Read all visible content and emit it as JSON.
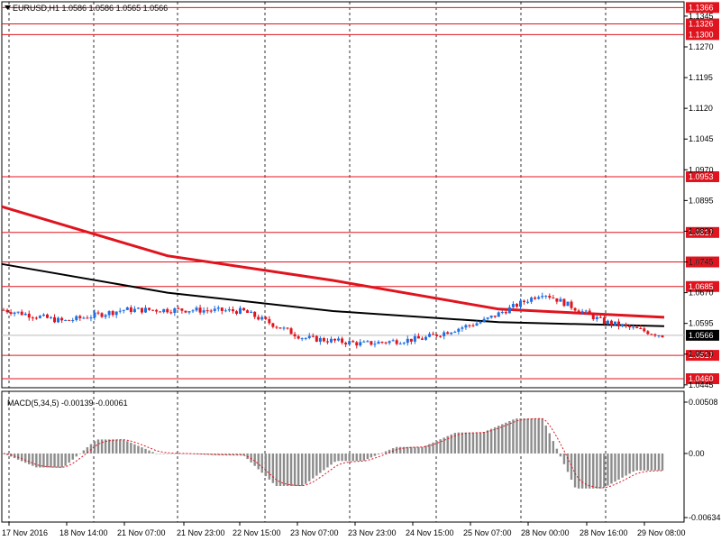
{
  "header": {
    "symbol_info": "EURUSD,H1  1.0586 1.0586 1.0565 1.0566",
    "macd_info": "MACD(5,34,5) -0.00139 -0.00061",
    "menu_icon": "triangle-down-icon"
  },
  "colors": {
    "bull": "#1e6fe0",
    "bear": "#e0141e",
    "hline": "#e0141e",
    "ma_slow": "#e0141e",
    "ma_fast": "#000000",
    "hist": "#8c8c8c",
    "signal": "#e0141e",
    "grid": "#000000"
  },
  "price_axis": {
    "ticks": [
      "1.1345",
      "1.1270",
      "1.1195",
      "1.1120",
      "1.1045",
      "1.0970",
      "1.0895",
      "1.0820",
      "1.0745",
      "1.0670",
      "1.0595",
      "1.0520",
      "1.0445"
    ],
    "current_price": "1.0566"
  },
  "levels": [
    "1.1366",
    "1.1326",
    "1.1300",
    "1.0953",
    "1.0817",
    "1.0745",
    "1.0685",
    "1.0517",
    "1.0460"
  ],
  "macd_axis": {
    "ticks": [
      "0.00508",
      "0.00",
      "-0.00634"
    ]
  },
  "time_axis": {
    "labels": [
      "17 Nov 2016",
      "18 Nov 14:00",
      "21 Nov 07:00",
      "21 Nov 23:00",
      "22 Nov 15:00",
      "23 Nov 07:00",
      "23 Nov 23:00",
      "24 Nov 15:00",
      "25 Nov 07:00",
      "28 Nov 00:00",
      "28 Nov 16:00",
      "29 Nov 08:00"
    ]
  },
  "chart_data": [
    {
      "type": "candlestick",
      "title": "EURUSD,H1",
      "ylim": [
        1.0445,
        1.1366
      ],
      "ohlc_last": {
        "open": 1.0586,
        "high": 1.0586,
        "low": 1.0565,
        "close": 1.0566
      },
      "key_points": [
        {
          "t": "17 Nov 2016",
          "price": 1.0628
        },
        {
          "t": "18 Nov 14:00",
          "price": 1.06
        },
        {
          "t": "21 Nov 07:00",
          "price": 1.0628
        },
        {
          "t": "21 Nov 23:00",
          "price": 1.0628
        },
        {
          "t": "22 Nov 15:00",
          "price": 1.0625
        },
        {
          "t": "23 Nov 07:00",
          "price": 1.056
        },
        {
          "t": "23 Nov 23:00",
          "price": 1.0545
        },
        {
          "t": "24 Nov 15:00",
          "price": 1.0558
        },
        {
          "t": "25 Nov 07:00",
          "price": 1.06
        },
        {
          "t": "28 Nov 00:00",
          "price": 1.067
        },
        {
          "t": "28 Nov 16:00",
          "price": 1.06
        },
        {
          "t": "29 Nov 08:00",
          "price": 1.0566
        }
      ],
      "moving_averages": [
        {
          "points": [
            [
              0,
              1.088
            ],
            [
              0.25,
              1.076
            ],
            [
              0.5,
              1.07
            ],
            [
              0.75,
              1.063
            ],
            [
              1.0,
              1.061
            ]
          ]
        },
        {
          "points": [
            [
              0,
              1.074
            ],
            [
              0.25,
              1.067
            ],
            [
              0.5,
              1.0625
            ],
            [
              0.75,
              1.0598
            ],
            [
              1.0,
              1.0588
            ]
          ]
        }
      ],
      "horizontal_levels": [
        1.1366,
        1.1326,
        1.13,
        1.0953,
        1.0817,
        1.0745,
        1.0685,
        1.0517,
        1.046
      ]
    },
    {
      "type": "bar",
      "title": "MACD(5,34,5)",
      "values_last": {
        "macd": -0.00139,
        "signal": -0.00061
      },
      "ylim": [
        -0.00634,
        0.00508
      ]
    }
  ]
}
